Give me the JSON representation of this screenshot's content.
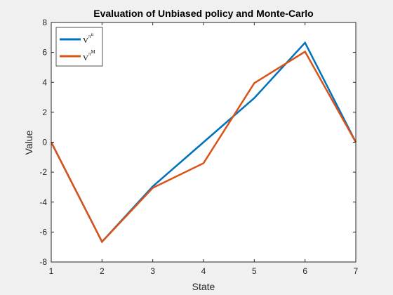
{
  "chart_data": {
    "type": "line",
    "title": "Evaluation of Unbiased policy and Monte-Carlo",
    "xlabel": "State",
    "ylabel": "Value",
    "xlim": [
      1,
      7
    ],
    "ylim": [
      -8,
      8
    ],
    "xticks": [
      1,
      2,
      3,
      4,
      5,
      6,
      7
    ],
    "yticks": [
      -8,
      -6,
      -4,
      -2,
      0,
      2,
      4,
      6,
      8
    ],
    "grid": false,
    "legend_position": "top-left",
    "x": [
      1,
      2,
      3,
      4,
      5,
      6,
      7
    ],
    "series": [
      {
        "legend_base": "V",
        "legend_sup": "π",
        "legend_subsup": "u",
        "color": "#0072BD",
        "values": [
          0,
          -6.65,
          -2.95,
          0.0,
          2.95,
          6.65,
          0
        ]
      },
      {
        "legend_base": "V",
        "legend_sup": "π",
        "legend_subsup": "M",
        "color": "#D95319",
        "values": [
          0,
          -6.65,
          -3.05,
          -1.4,
          3.95,
          6.05,
          0
        ]
      }
    ]
  }
}
